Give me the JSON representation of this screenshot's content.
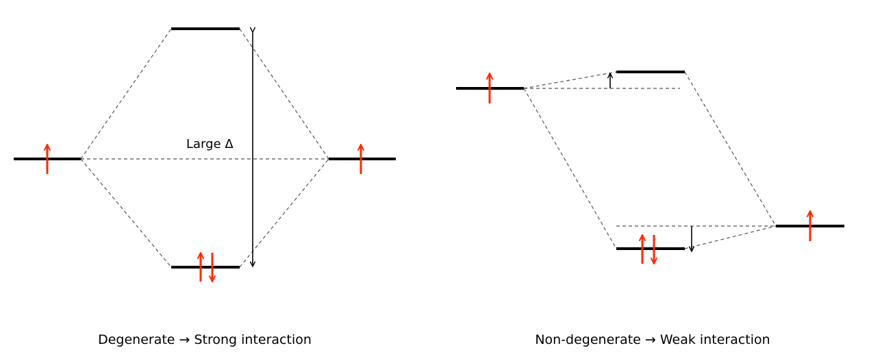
{
  "left_panel": {
    "gap_label": "Large Δ",
    "caption": "Degenerate → Strong interaction"
  },
  "right_panel": {
    "caption": "Non-degenerate → Weak interaction"
  },
  "colors": {
    "spin": "#ff2a00",
    "level": "#000000",
    "dashed_line": "#555555"
  }
}
